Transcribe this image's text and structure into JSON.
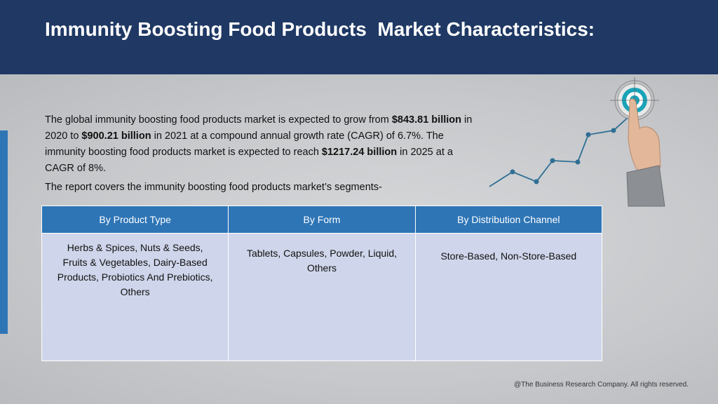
{
  "title": "Immunity Boosting Food Products  Market Characteristics:",
  "paragraph": {
    "t1": "The global immunity boosting food products market is expected to grow from ",
    "b1": "$843.81 billion",
    "t2": " in 2020 to ",
    "b2": "$900.21 billion",
    "t3": " in 2021 at a compound annual growth rate (CAGR) of 6.7%. The immunity boosting food products market is expected to reach ",
    "b3": "$1217.24 billion",
    "t4": " in 2025 at a CAGR of 8%."
  },
  "segments_intro": "The report covers the immunity boosting food products market’s segments-",
  "segments": {
    "headers": [
      "By Product Type",
      "By Form",
      "By Distribution Channel"
    ],
    "cells": [
      "Herbs & Spices, Nuts & Seeds, Fruits & Vegetables, Dairy-Based Products, Probiotics And Prebiotics, Others",
      "Tablets, Capsules, Powder, Liquid, Others",
      "Store-Based, Non-Store-Based"
    ]
  },
  "footer": "@The Business Research Company. All rights reserved.",
  "colors": {
    "header_bg": "#1f3864",
    "table_header": "#2e75b6",
    "table_cell": "#cfd5ea",
    "accent_bar": "#2e75b6"
  },
  "icons": [
    "growth-line-icon",
    "hand-pointing-target-icon"
  ]
}
